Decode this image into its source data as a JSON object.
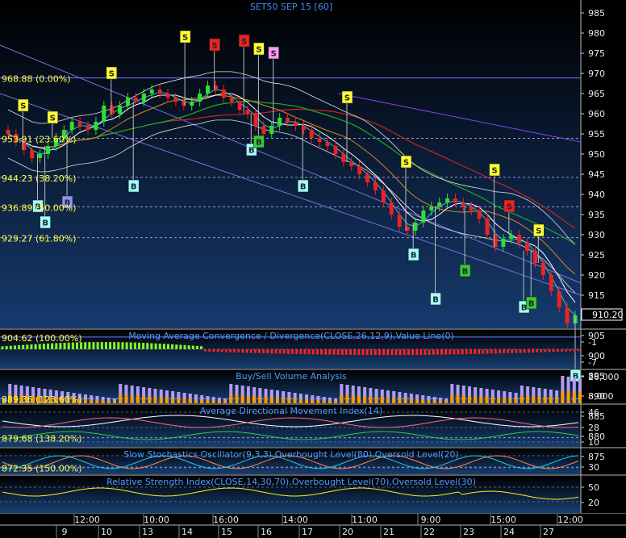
{
  "chart_data": [
    {
      "type": "candlestick",
      "title": "SET50 SEP 15   [60]",
      "ylim": [
        872.35,
        990
      ],
      "y_ticks": [
        875,
        880,
        885,
        890,
        895,
        900,
        905,
        910,
        915,
        920,
        925,
        930,
        935,
        940,
        945,
        950,
        955,
        960,
        965,
        970,
        975,
        980,
        985
      ],
      "last_price": "910.20",
      "fib_levels": [
        {
          "label": "968.88 (0.00%)",
          "value": 968.88
        },
        {
          "label": "953.91 (23.60%)",
          "value": 953.91
        },
        {
          "label": "944.23 (38.20%)",
          "value": 944.23
        },
        {
          "label": "936.89 (50.00%)",
          "value": 936.89
        },
        {
          "label": "929.27 (61.80%)",
          "value": 929.27
        },
        {
          "label": "904.62 (100.00%)",
          "value": 904.62
        },
        {
          "label": "889.36 (123.60%)",
          "value": 889.36
        },
        {
          "label": "879.68 (138.20%)",
          "value": 879.68
        },
        {
          "label": "872.35 (150.00%)",
          "value": 872.35
        }
      ],
      "close": [
        955,
        953,
        951,
        949,
        950,
        952,
        954,
        956,
        958,
        957,
        956,
        958,
        962,
        960,
        962,
        964,
        963,
        965,
        966,
        965,
        964,
        963,
        962,
        963,
        965,
        967,
        966,
        964,
        963,
        961,
        960,
        957,
        955,
        957,
        959,
        958,
        957,
        956,
        954,
        953,
        952,
        950,
        948,
        947,
        945,
        943,
        941,
        938,
        935,
        932,
        931,
        933,
        936,
        937,
        938,
        939,
        938,
        937,
        936,
        934,
        930,
        927,
        929,
        930,
        928,
        926,
        923,
        920,
        916,
        912,
        908,
        910
      ],
      "signals": [
        {
          "i": 2,
          "t": "S",
          "p": 962,
          "c": "#ffff33"
        },
        {
          "i": 4,
          "t": "B",
          "p": 937,
          "c": "#a0ffff"
        },
        {
          "i": 5,
          "t": "B",
          "p": 933,
          "c": "#a0ffff"
        },
        {
          "i": 6,
          "t": "S",
          "p": 959,
          "c": "#ffff33"
        },
        {
          "i": 8,
          "t": "B",
          "p": 938,
          "c": "#9090ff"
        },
        {
          "i": 14,
          "t": "S",
          "p": 970,
          "c": "#ffff33"
        },
        {
          "i": 17,
          "t": "B",
          "p": 942,
          "c": "#a0ffff"
        },
        {
          "i": 24,
          "t": "S",
          "p": 979,
          "c": "#ffff33"
        },
        {
          "i": 28,
          "t": "S",
          "p": 977,
          "c": "#ee2222"
        },
        {
          "i": 32,
          "t": "S",
          "p": 978,
          "c": "#ee2222"
        },
        {
          "i": 33,
          "t": "B",
          "p": 951,
          "c": "#a0ffff"
        },
        {
          "i": 34,
          "t": "B",
          "p": 953,
          "c": "#33cc33"
        },
        {
          "i": 34,
          "t": "S",
          "p": 976,
          "c": "#ffff33"
        },
        {
          "i": 36,
          "t": "S",
          "p": 975,
          "c": "#ff99ff"
        },
        {
          "i": 40,
          "t": "B",
          "p": 942,
          "c": "#a0ffff"
        },
        {
          "i": 46,
          "t": "S",
          "p": 964,
          "c": "#ffff33"
        },
        {
          "i": 54,
          "t": "S",
          "p": 948,
          "c": "#ffff33"
        },
        {
          "i": 55,
          "t": "B",
          "p": 925,
          "c": "#a0ffff"
        },
        {
          "i": 58,
          "t": "B",
          "p": 914,
          "c": "#a0ffff"
        },
        {
          "i": 62,
          "t": "B",
          "p": 921,
          "c": "#33cc33"
        },
        {
          "i": 66,
          "t": "S",
          "p": 946,
          "c": "#ffff33"
        },
        {
          "i": 68,
          "t": "S",
          "p": 937,
          "c": "#ee2222"
        },
        {
          "i": 70,
          "t": "B",
          "p": 912,
          "c": "#a0ffff"
        },
        {
          "i": 71,
          "t": "B",
          "p": 913,
          "c": "#33cc33"
        },
        {
          "i": 72,
          "t": "S",
          "p": 931,
          "c": "#ffff33"
        },
        {
          "i": 77,
          "t": "B",
          "p": 895,
          "c": "#a0ffff"
        }
      ]
    },
    {
      "type": "bar",
      "title": "Moving Average Convergence / Divergence(CLOSE,26,12,9),Value Line(0)",
      "y_ticks": [
        -1,
        -7
      ]
    },
    {
      "type": "bar",
      "title": "Buy/Sell Volume Analysis",
      "y_ticks": [
        "26,000",
        "8,000"
      ]
    },
    {
      "type": "line",
      "title": "Average Directional Movement Index(14)",
      "y_ticks": [
        46,
        28,
        10
      ]
    },
    {
      "type": "line",
      "title": "Slow Stochastics Oscillator(9,3,3),Overbought Level(80),Oversold Level(20)",
      "y_ticks": [
        30
      ]
    },
    {
      "type": "line",
      "title": "Relative Strength Index(CLOSE,14,30,70),Overbought Level(70),Oversold Level(30)",
      "y_ticks": [
        50,
        20
      ]
    }
  ],
  "time_axis": {
    "times": [
      {
        "label": "12:00",
        "x": 108
      },
      {
        "label": "10:00",
        "x": 194
      },
      {
        "label": "16:00",
        "x": 280
      },
      {
        "label": "14:00",
        "x": 366
      },
      {
        "label": "11:00",
        "x": 452
      },
      {
        "label": "9:00",
        "x": 534
      },
      {
        "label": "15:00",
        "x": 624
      },
      {
        "label": "12:00",
        "x": 707
      }
    ],
    "days": [
      {
        "label": "9",
        "x": 80
      },
      {
        "label": "10",
        "x": 132
      },
      {
        "label": "13",
        "x": 183
      },
      {
        "label": "14",
        "x": 232
      },
      {
        "label": "15",
        "x": 281
      },
      {
        "label": "16",
        "x": 330
      },
      {
        "label": "17",
        "x": 381
      },
      {
        "label": "20",
        "x": 431
      },
      {
        "label": "21",
        "x": 482
      },
      {
        "label": "22",
        "x": 532
      },
      {
        "label": "23",
        "x": 581
      },
      {
        "label": "24",
        "x": 631
      },
      {
        "label": "27",
        "x": 680
      }
    ]
  }
}
